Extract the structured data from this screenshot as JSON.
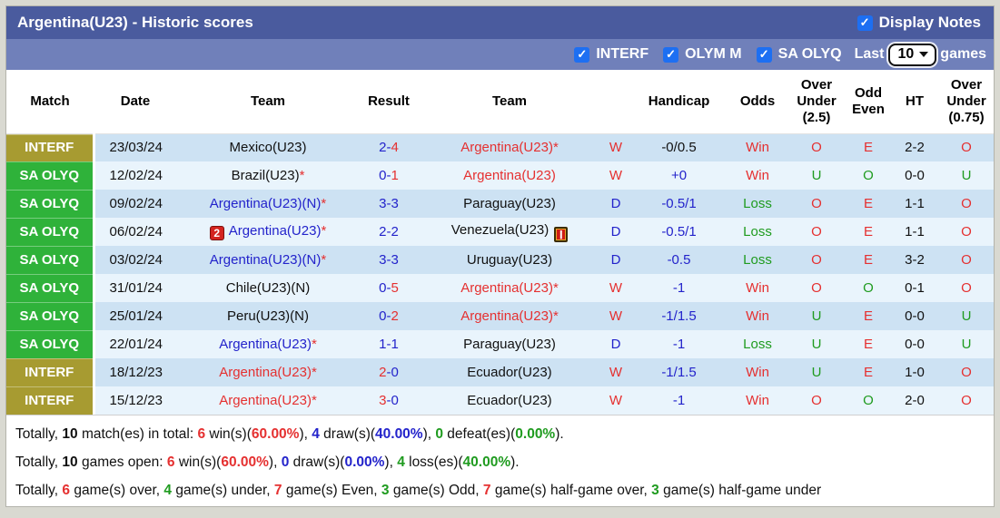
{
  "colors": {
    "page_bg": "#d9d9d1",
    "title_bar": "#4a5b9e",
    "sub_bar": "#7080ba",
    "checkbox": "#1d6ff2",
    "row_dark": "#cde2f3",
    "row_light": "#e9f4fc",
    "badge_interf": "#a79b31",
    "badge_saolyq": "#2fb23a",
    "red": "#e53030",
    "blue": "#2323cb",
    "green": "#1f9b1f"
  },
  "icons": {
    "match_note_2": "2",
    "red_card": "❙",
    "checkbox_check": "✓"
  },
  "header": {
    "title": "Argentina(U23) - Historic scores",
    "display_notes_label": "Display Notes",
    "display_notes_checked": true,
    "filters": [
      {
        "label": "INTERF",
        "checked": true
      },
      {
        "label": "OLYM M",
        "checked": true
      },
      {
        "label": "SA OLYQ",
        "checked": true
      }
    ],
    "last_label": "Last",
    "games_count": "10",
    "games_label": "games"
  },
  "table": {
    "columns": [
      "Match",
      "Date",
      "Team",
      "Result",
      "Team",
      "",
      "Handicap",
      "Odds",
      "Over Under (2.5)",
      "Odd Even",
      "HT",
      "Over Under (0.75)"
    ],
    "rows": [
      {
        "league": "INTERF",
        "date": "23/03/24",
        "home": {
          "name": "Mexico(U23)",
          "color": "black",
          "star": false
        },
        "score": {
          "h": "2",
          "a": "4",
          "hc": "blue",
          "ac": "red"
        },
        "away": {
          "name": "Argentina(U23)",
          "color": "red",
          "star": true
        },
        "wdl": {
          "t": "W",
          "c": "red"
        },
        "handicap": {
          "t": "-0/0.5",
          "c": "black"
        },
        "odds": {
          "t": "Win",
          "c": "red"
        },
        "ou25": {
          "t": "O",
          "c": "red"
        },
        "oe": {
          "t": "E",
          "c": "red"
        },
        "ht": "2-2",
        "ou075": {
          "t": "O",
          "c": "red"
        }
      },
      {
        "league": "SA OLYQ",
        "date": "12/02/24",
        "home": {
          "name": "Brazil(U23)",
          "color": "black",
          "star": true
        },
        "score": {
          "h": "0",
          "a": "1",
          "hc": "blue",
          "ac": "red"
        },
        "away": {
          "name": "Argentina(U23)",
          "color": "red",
          "star": false
        },
        "wdl": {
          "t": "W",
          "c": "red"
        },
        "handicap": {
          "t": "+0",
          "c": "blue"
        },
        "odds": {
          "t": "Win",
          "c": "red"
        },
        "ou25": {
          "t": "U",
          "c": "green"
        },
        "oe": {
          "t": "O",
          "c": "green"
        },
        "ht": "0-0",
        "ou075": {
          "t": "U",
          "c": "green"
        }
      },
      {
        "league": "SA OLYQ",
        "date": "09/02/24",
        "home": {
          "name": "Argentina(U23)(N)",
          "color": "blue",
          "star": true
        },
        "score": {
          "h": "3",
          "a": "3",
          "hc": "blue",
          "ac": "blue"
        },
        "away": {
          "name": "Paraguay(U23)",
          "color": "black",
          "star": false
        },
        "wdl": {
          "t": "D",
          "c": "blue"
        },
        "handicap": {
          "t": "-0.5/1",
          "c": "blue"
        },
        "odds": {
          "t": "Loss",
          "c": "green"
        },
        "ou25": {
          "t": "O",
          "c": "red"
        },
        "oe": {
          "t": "E",
          "c": "red"
        },
        "ht": "1-1",
        "ou075": {
          "t": "O",
          "c": "red"
        }
      },
      {
        "league": "SA OLYQ",
        "date": "06/02/24",
        "home": {
          "name": "Argentina(U23)",
          "color": "blue",
          "star": true,
          "icon": "red2"
        },
        "score": {
          "h": "2",
          "a": "2",
          "hc": "blue",
          "ac": "blue"
        },
        "away": {
          "name": "Venezuela(U23)",
          "color": "black",
          "star": false,
          "icon": "card"
        },
        "wdl": {
          "t": "D",
          "c": "blue"
        },
        "handicap": {
          "t": "-0.5/1",
          "c": "blue"
        },
        "odds": {
          "t": "Loss",
          "c": "green"
        },
        "ou25": {
          "t": "O",
          "c": "red"
        },
        "oe": {
          "t": "E",
          "c": "red"
        },
        "ht": "1-1",
        "ou075": {
          "t": "O",
          "c": "red"
        }
      },
      {
        "league": "SA OLYQ",
        "date": "03/02/24",
        "home": {
          "name": "Argentina(U23)(N)",
          "color": "blue",
          "star": true
        },
        "score": {
          "h": "3",
          "a": "3",
          "hc": "blue",
          "ac": "blue"
        },
        "away": {
          "name": "Uruguay(U23)",
          "color": "black",
          "star": false
        },
        "wdl": {
          "t": "D",
          "c": "blue"
        },
        "handicap": {
          "t": "-0.5",
          "c": "blue"
        },
        "odds": {
          "t": "Loss",
          "c": "green"
        },
        "ou25": {
          "t": "O",
          "c": "red"
        },
        "oe": {
          "t": "E",
          "c": "red"
        },
        "ht": "3-2",
        "ou075": {
          "t": "O",
          "c": "red"
        }
      },
      {
        "league": "SA OLYQ",
        "date": "31/01/24",
        "home": {
          "name": "Chile(U23)(N)",
          "color": "black",
          "star": false
        },
        "score": {
          "h": "0",
          "a": "5",
          "hc": "blue",
          "ac": "red"
        },
        "away": {
          "name": "Argentina(U23)",
          "color": "red",
          "star": true
        },
        "wdl": {
          "t": "W",
          "c": "red"
        },
        "handicap": {
          "t": "-1",
          "c": "blue"
        },
        "odds": {
          "t": "Win",
          "c": "red"
        },
        "ou25": {
          "t": "O",
          "c": "red"
        },
        "oe": {
          "t": "O",
          "c": "green"
        },
        "ht": "0-1",
        "ou075": {
          "t": "O",
          "c": "red"
        }
      },
      {
        "league": "SA OLYQ",
        "date": "25/01/24",
        "home": {
          "name": "Peru(U23)(N)",
          "color": "black",
          "star": false
        },
        "score": {
          "h": "0",
          "a": "2",
          "hc": "blue",
          "ac": "red"
        },
        "away": {
          "name": "Argentina(U23)",
          "color": "red",
          "star": true
        },
        "wdl": {
          "t": "W",
          "c": "red"
        },
        "handicap": {
          "t": "-1/1.5",
          "c": "blue"
        },
        "odds": {
          "t": "Win",
          "c": "red"
        },
        "ou25": {
          "t": "U",
          "c": "green"
        },
        "oe": {
          "t": "E",
          "c": "red"
        },
        "ht": "0-0",
        "ou075": {
          "t": "U",
          "c": "green"
        }
      },
      {
        "league": "SA OLYQ",
        "date": "22/01/24",
        "home": {
          "name": "Argentina(U23)",
          "color": "blue",
          "star": true
        },
        "score": {
          "h": "1",
          "a": "1",
          "hc": "blue",
          "ac": "blue"
        },
        "away": {
          "name": "Paraguay(U23)",
          "color": "black",
          "star": false
        },
        "wdl": {
          "t": "D",
          "c": "blue"
        },
        "handicap": {
          "t": "-1",
          "c": "blue"
        },
        "odds": {
          "t": "Loss",
          "c": "green"
        },
        "ou25": {
          "t": "U",
          "c": "green"
        },
        "oe": {
          "t": "E",
          "c": "red"
        },
        "ht": "0-0",
        "ou075": {
          "t": "U",
          "c": "green"
        }
      },
      {
        "league": "INTERF",
        "date": "18/12/23",
        "home": {
          "name": "Argentina(U23)",
          "color": "red",
          "star": true
        },
        "score": {
          "h": "2",
          "a": "0",
          "hc": "red",
          "ac": "blue"
        },
        "away": {
          "name": "Ecuador(U23)",
          "color": "black",
          "star": false
        },
        "wdl": {
          "t": "W",
          "c": "red"
        },
        "handicap": {
          "t": "-1/1.5",
          "c": "blue"
        },
        "odds": {
          "t": "Win",
          "c": "red"
        },
        "ou25": {
          "t": "U",
          "c": "green"
        },
        "oe": {
          "t": "E",
          "c": "red"
        },
        "ht": "1-0",
        "ou075": {
          "t": "O",
          "c": "red"
        }
      },
      {
        "league": "INTERF",
        "date": "15/12/23",
        "home": {
          "name": "Argentina(U23)",
          "color": "red",
          "star": true
        },
        "score": {
          "h": "3",
          "a": "0",
          "hc": "red",
          "ac": "blue"
        },
        "away": {
          "name": "Ecuador(U23)",
          "color": "black",
          "star": false
        },
        "wdl": {
          "t": "W",
          "c": "red"
        },
        "handicap": {
          "t": "-1",
          "c": "blue"
        },
        "odds": {
          "t": "Win",
          "c": "red"
        },
        "ou25": {
          "t": "O",
          "c": "red"
        },
        "oe": {
          "t": "O",
          "c": "green"
        },
        "ht": "2-0",
        "ou075": {
          "t": "O",
          "c": "red"
        }
      }
    ]
  },
  "summary": {
    "lines": [
      [
        {
          "t": "Totally, "
        },
        {
          "t": "10",
          "b": 1
        },
        {
          "t": " match(es) in total: "
        },
        {
          "t": "6",
          "b": 1,
          "c": "red"
        },
        {
          "t": " win(s)("
        },
        {
          "t": "60.00%",
          "b": 1,
          "c": "red"
        },
        {
          "t": "), "
        },
        {
          "t": "4",
          "b": 1,
          "c": "blue"
        },
        {
          "t": " draw(s)("
        },
        {
          "t": "40.00%",
          "b": 1,
          "c": "blue"
        },
        {
          "t": "), "
        },
        {
          "t": "0",
          "b": 1,
          "c": "green"
        },
        {
          "t": " defeat(es)("
        },
        {
          "t": "0.00%",
          "b": 1,
          "c": "green"
        },
        {
          "t": ")."
        }
      ],
      [
        {
          "t": "Totally, "
        },
        {
          "t": "10",
          "b": 1
        },
        {
          "t": " games open: "
        },
        {
          "t": "6",
          "b": 1,
          "c": "red"
        },
        {
          "t": " win(s)("
        },
        {
          "t": "60.00%",
          "b": 1,
          "c": "red"
        },
        {
          "t": "), "
        },
        {
          "t": "0",
          "b": 1,
          "c": "blue"
        },
        {
          "t": " draw(s)("
        },
        {
          "t": "0.00%",
          "b": 1,
          "c": "blue"
        },
        {
          "t": "), "
        },
        {
          "t": "4",
          "b": 1,
          "c": "green"
        },
        {
          "t": " loss(es)("
        },
        {
          "t": "40.00%",
          "b": 1,
          "c": "green"
        },
        {
          "t": ")."
        }
      ],
      [
        {
          "t": "Totally, "
        },
        {
          "t": "6",
          "b": 1,
          "c": "red"
        },
        {
          "t": " game(s) over, "
        },
        {
          "t": "4",
          "b": 1,
          "c": "green"
        },
        {
          "t": " game(s) under, "
        },
        {
          "t": "7",
          "b": 1,
          "c": "red"
        },
        {
          "t": " game(s) Even, "
        },
        {
          "t": "3",
          "b": 1,
          "c": "green"
        },
        {
          "t": " game(s) Odd, "
        },
        {
          "t": "7",
          "b": 1,
          "c": "red"
        },
        {
          "t": " game(s) half-game over, "
        },
        {
          "t": "3",
          "b": 1,
          "c": "green"
        },
        {
          "t": " game(s) half-game under"
        }
      ]
    ]
  }
}
